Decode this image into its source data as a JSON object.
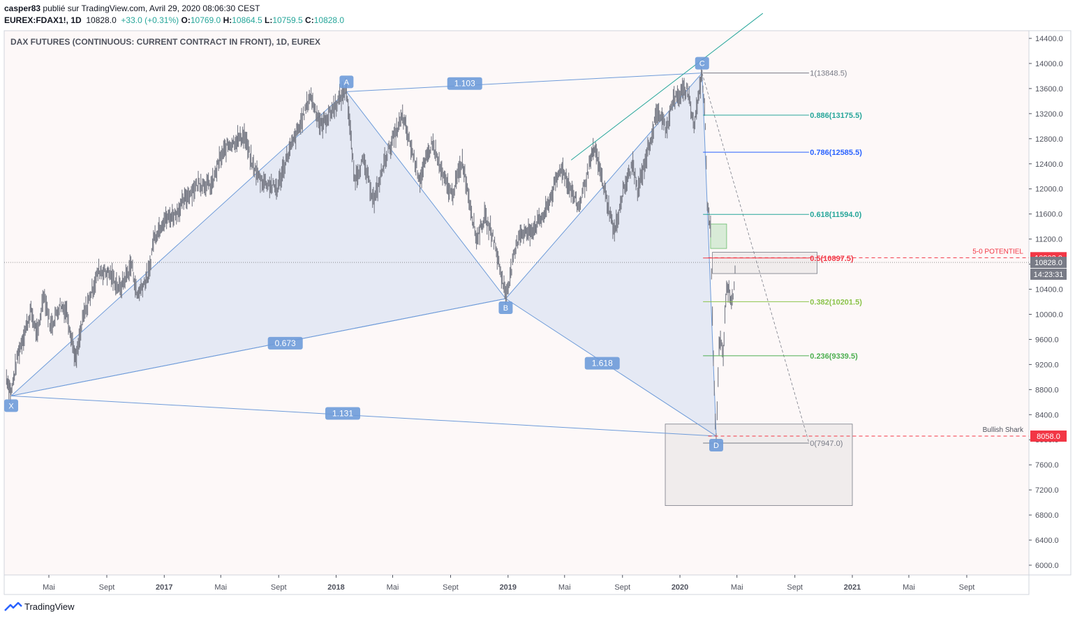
{
  "header": {
    "publisher": "casper83",
    "published_text": "publié sur TradingView.com, Avril 29, 2020 08:06:30 CEST",
    "symbol": "EUREX:FDAX1!, 1D",
    "last": "10828.0",
    "change": "+33.0 (+0.31%)",
    "o_label": "O:",
    "o": "10769.0",
    "h_label": "H:",
    "h": "10864.5",
    "l_label": "L:",
    "l": "10759.5",
    "c_label": "C:",
    "c": "10828.0"
  },
  "chart_title": "DAX FUTURES (CONTINUOUS: CURRENT CONTRACT IN FRONT), 1D, EUREX",
  "footer": {
    "brand": "TradingView"
  },
  "chart_data": {
    "type": "line",
    "y_axis": {
      "ticks": [
        6000,
        6400,
        6800,
        7200,
        7600,
        8000,
        8400,
        8800,
        9200,
        9600,
        10000,
        10400,
        10800,
        11200,
        11600,
        12000,
        12400,
        12800,
        13200,
        13600,
        14000,
        14400
      ],
      "tick_labels": [
        "6000.0",
        "6400.0",
        "6800.0",
        "7200.0",
        "7600.0",
        "8000.0",
        "8400.0",
        "8800.0",
        "9200.0",
        "9600.0",
        "10000.0",
        "10400.0",
        "10800.0",
        "11200.0",
        "11600.0",
        "12000.0",
        "12400.0",
        "12800.0",
        "13200.0",
        "13600.0",
        "14000.0",
        "14400.0"
      ],
      "range": [
        5750,
        14800
      ]
    },
    "x_axis": {
      "ticks": [
        {
          "label": "Mai",
          "date": "2016-05-01",
          "bold": false
        },
        {
          "label": "Sept",
          "date": "2016-09-01",
          "bold": false
        },
        {
          "label": "2017",
          "date": "2017-01-01",
          "bold": true
        },
        {
          "label": "Mai",
          "date": "2017-05-01",
          "bold": false
        },
        {
          "label": "Sept",
          "date": "2017-09-01",
          "bold": false
        },
        {
          "label": "2018",
          "date": "2018-01-01",
          "bold": true
        },
        {
          "label": "Mai",
          "date": "2018-05-01",
          "bold": false
        },
        {
          "label": "Sept",
          "date": "2018-09-01",
          "bold": false
        },
        {
          "label": "2019",
          "date": "2019-01-01",
          "bold": true
        },
        {
          "label": "Mai",
          "date": "2019-05-01",
          "bold": false
        },
        {
          "label": "Sept",
          "date": "2019-09-01",
          "bold": false
        },
        {
          "label": "2020",
          "date": "2020-01-01",
          "bold": true
        },
        {
          "label": "Mai",
          "date": "2020-05-01",
          "bold": false
        },
        {
          "label": "Sept",
          "date": "2020-09-01",
          "bold": false
        },
        {
          "label": "2021",
          "date": "2021-01-01",
          "bold": true
        },
        {
          "label": "Mai",
          "date": "2021-05-01",
          "bold": false
        },
        {
          "label": "Sept",
          "date": "2021-09-01",
          "bold": false
        }
      ],
      "range": [
        "2016-02-01",
        "2021-12-31"
      ]
    },
    "series": [
      {
        "color": "#787b86",
        "points": [
          [
            "2016-02-01",
            9000
          ],
          [
            "2016-02-11",
            8750
          ],
          [
            "2016-02-25",
            9350
          ],
          [
            "2016-03-10",
            9700
          ],
          [
            "2016-03-24",
            10050
          ],
          [
            "2016-04-07",
            9650
          ],
          [
            "2016-04-20",
            10350
          ],
          [
            "2016-05-05",
            9800
          ],
          [
            "2016-05-25",
            10150
          ],
          [
            "2016-06-08",
            10050
          ],
          [
            "2016-06-24",
            9400
          ],
          [
            "2016-06-27",
            9250
          ],
          [
            "2016-07-13",
            9950
          ],
          [
            "2016-07-28",
            10300
          ],
          [
            "2016-08-15",
            10700
          ],
          [
            "2016-09-07",
            10650
          ],
          [
            "2016-09-29",
            10400
          ],
          [
            "2016-10-24",
            10800
          ],
          [
            "2016-11-04",
            10300
          ],
          [
            "2016-11-30",
            10650
          ],
          [
            "2016-12-09",
            11200
          ],
          [
            "2016-12-30",
            11500
          ],
          [
            "2017-01-25",
            11600
          ],
          [
            "2017-02-20",
            11900
          ],
          [
            "2017-03-16",
            12100
          ],
          [
            "2017-04-12",
            12050
          ],
          [
            "2017-04-28",
            12450
          ],
          [
            "2017-05-16",
            12700
          ],
          [
            "2017-06-20",
            12850
          ],
          [
            "2017-07-06",
            12400
          ],
          [
            "2017-07-24",
            12150
          ],
          [
            "2017-08-29",
            12000
          ],
          [
            "2017-09-18",
            12500
          ],
          [
            "2017-10-16",
            13000
          ],
          [
            "2017-11-07",
            13500
          ],
          [
            "2017-11-30",
            13000
          ],
          [
            "2017-12-14",
            13150
          ],
          [
            "2018-01-23",
            13600
          ],
          [
            "2018-02-09",
            12150
          ],
          [
            "2018-02-27",
            12450
          ],
          [
            "2018-03-23",
            11800
          ],
          [
            "2018-04-16",
            12500
          ],
          [
            "2018-05-22",
            13150
          ],
          [
            "2018-06-28",
            12150
          ],
          [
            "2018-07-24",
            12750
          ],
          [
            "2018-08-15",
            12200
          ],
          [
            "2018-09-04",
            11900
          ],
          [
            "2018-09-26",
            12450
          ],
          [
            "2018-10-26",
            11200
          ],
          [
            "2018-11-12",
            11550
          ],
          [
            "2018-11-30",
            11250
          ],
          [
            "2018-12-27",
            10300
          ],
          [
            "2019-01-25",
            11300
          ],
          [
            "2019-02-15",
            11300
          ],
          [
            "2019-03-20",
            11600
          ],
          [
            "2019-04-24",
            12350
          ],
          [
            "2019-05-31",
            11700
          ],
          [
            "2019-06-24",
            12400
          ],
          [
            "2019-07-04",
            12650
          ],
          [
            "2019-08-15",
            11300
          ],
          [
            "2019-09-02",
            11950
          ],
          [
            "2019-09-23",
            12400
          ],
          [
            "2019-10-03",
            11950
          ],
          [
            "2019-11-15",
            13250
          ],
          [
            "2019-12-03",
            12950
          ],
          [
            "2019-12-16",
            13400
          ],
          [
            "2020-01-17",
            13600
          ],
          [
            "2020-01-31",
            13000
          ],
          [
            "2020-02-17",
            13850
          ],
          [
            "2020-02-24",
            13050
          ],
          [
            "2020-02-28",
            11800
          ],
          [
            "2020-03-06",
            11400
          ],
          [
            "2020-03-12",
            9300
          ],
          [
            "2020-03-16",
            8350
          ],
          [
            "2020-03-18",
            7950
          ],
          [
            "2020-03-24",
            9450
          ],
          [
            "2020-03-27",
            9550
          ],
          [
            "2020-04-02",
            9400
          ],
          [
            "2020-04-09",
            10500
          ],
          [
            "2020-04-21",
            10200
          ],
          [
            "2020-04-29",
            10828
          ]
        ]
      }
    ],
    "harmonic_points": [
      {
        "name": "X",
        "date": "2016-02-11",
        "value": 8700
      },
      {
        "name": "A",
        "date": "2018-01-23",
        "value": 13550
      },
      {
        "name": "B",
        "date": "2018-12-27",
        "value": 10250
      },
      {
        "name": "C",
        "date": "2020-02-17",
        "value": 13848.5
      },
      {
        "name": "D",
        "date": "2020-03-18",
        "value": 8058
      }
    ],
    "ratios": [
      {
        "label": "1.103",
        "date": "2018-10-01",
        "value": 13680
      },
      {
        "label": "0.673",
        "date": "2017-09-15",
        "value": 9540
      },
      {
        "label": "1.618",
        "date": "2019-07-20",
        "value": 9220
      },
      {
        "label": "1.131",
        "date": "2018-01-15",
        "value": 8420
      }
    ],
    "fib_levels": [
      {
        "label": "1(13848.5)",
        "value": 13848.5,
        "color": "#787b86"
      },
      {
        "label": "0.886(13175.5)",
        "value": 13175.5,
        "color": "#26a69a"
      },
      {
        "label": "0.786(12585.5)",
        "value": 12585.5,
        "color": "#2962ff"
      },
      {
        "label": "0.618(11594.0)",
        "value": 11594.0,
        "color": "#26a69a"
      },
      {
        "label": "0.5(10897.5)",
        "value": 10897.5,
        "color": "#f23645"
      },
      {
        "label": "0.382(10201.5)",
        "value": 10201.5,
        "color": "#8bc34a"
      },
      {
        "label": "0.236(9339.5)",
        "value": 9339.5,
        "color": "#4caf50"
      },
      {
        "label": "0(7947.0)",
        "value": 7947.0,
        "color": "#787b86"
      }
    ],
    "annotations": {
      "potential_label": "5-0 POTENTIEL",
      "potential_value": 10903.0,
      "bullish_label": "Bullish Shark",
      "bullish_value": 8058.0
    },
    "price_badges": [
      {
        "label": "10903.0",
        "value": 10903.0,
        "color": "#f23645"
      },
      {
        "label": "10828.0",
        "value": 10828.0,
        "color": "#787b86"
      },
      {
        "label": "14:23:31",
        "value": 10640.0,
        "color": "#787b86"
      },
      {
        "label": "8058.0",
        "value": 8058.0,
        "color": "#f23645"
      }
    ],
    "current_price": 10828.0,
    "colors": {
      "pattern_fill": "#c7d6f0",
      "pattern_line": "#6e9bd9",
      "trend_line": "#26a69a",
      "background": "#fdf8f8",
      "candles": "#787b86"
    }
  }
}
